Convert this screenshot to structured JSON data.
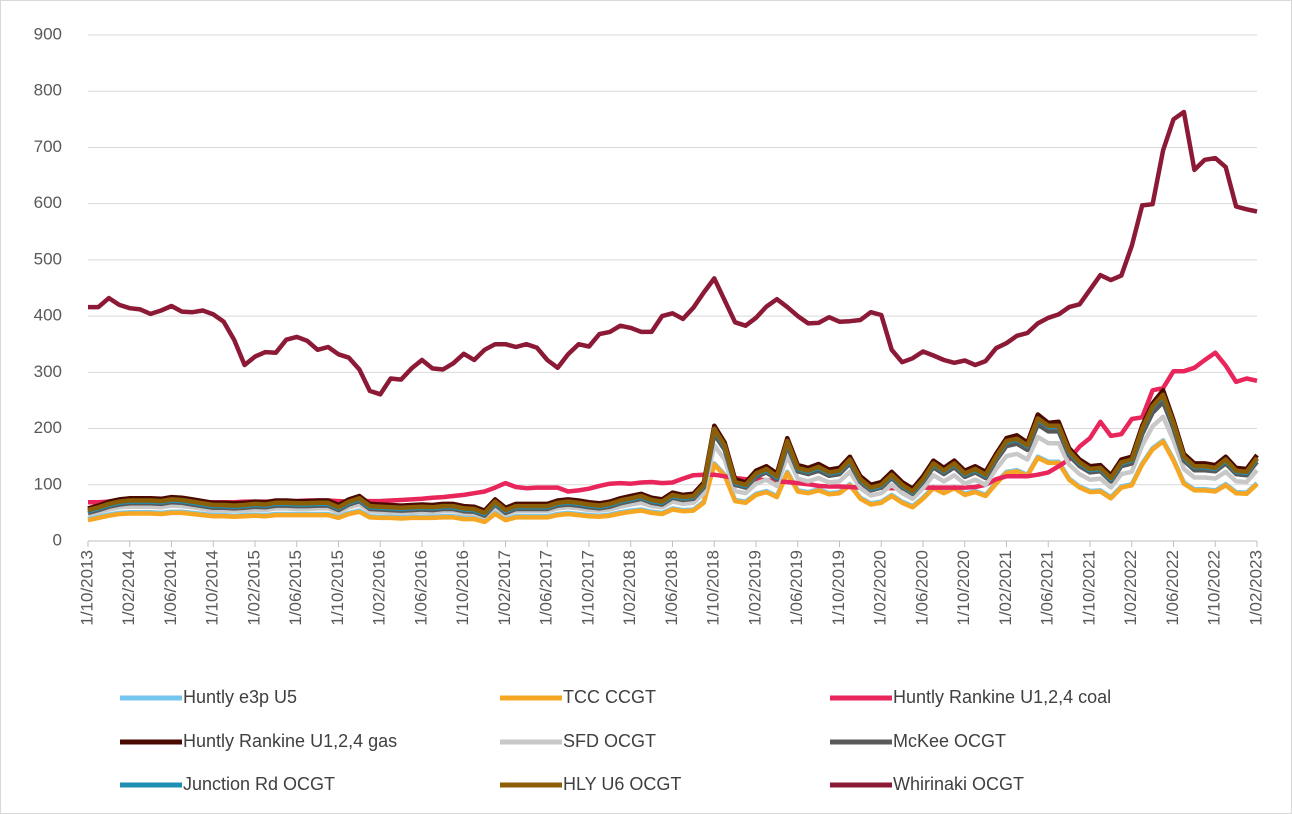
{
  "chart_data": {
    "type": "line",
    "grid": true,
    "legend": "bottom",
    "ylim": [
      0,
      900
    ],
    "yticks": [
      0,
      100,
      200,
      300,
      400,
      500,
      600,
      700,
      800,
      900
    ],
    "categories": [
      "1/10/2013",
      null,
      null,
      null,
      "1/02/2014",
      null,
      null,
      null,
      "1/06/2014",
      null,
      null,
      null,
      "1/10/2014",
      null,
      null,
      null,
      "1/02/2015",
      null,
      null,
      null,
      "1/06/2015",
      null,
      null,
      null,
      "1/10/2015",
      null,
      null,
      null,
      "1/02/2016",
      null,
      null,
      null,
      "1/06/2016",
      null,
      null,
      null,
      "1/10/2016",
      null,
      null,
      null,
      "1/02/2017",
      null,
      null,
      null,
      "1/06/2017",
      null,
      null,
      null,
      "1/10/2017",
      null,
      null,
      null,
      "1/02/2018",
      null,
      null,
      null,
      "1/06/2018",
      null,
      null,
      null,
      "1/10/2018",
      null,
      null,
      null,
      "1/02/2019",
      null,
      null,
      null,
      "1/06/2019",
      null,
      null,
      null,
      "1/10/2019",
      null,
      null,
      null,
      "1/02/2020",
      null,
      null,
      null,
      "1/06/2020",
      null,
      null,
      null,
      "1/10/2020",
      null,
      null,
      null,
      "1/02/2021",
      null,
      null,
      null,
      "1/06/2021",
      null,
      null,
      null,
      "1/10/2021",
      null,
      null,
      null,
      "1/02/2022",
      null,
      null,
      null,
      "1/06/2022",
      null,
      null,
      null,
      "1/10/2022",
      null,
      null,
      null,
      "1/02/2023"
    ],
    "series": [
      {
        "name": "Huntly e3p U5",
        "color": "#75c6ee",
        "values": [
          39,
          43,
          47,
          50,
          51,
          51,
          51,
          50,
          52,
          52,
          50,
          48,
          46,
          46,
          45,
          46,
          47,
          46,
          48,
          48,
          48,
          48,
          48,
          48,
          43,
          50,
          54,
          44,
          43,
          43,
          42,
          43,
          43,
          43,
          44,
          44,
          41,
          41,
          36,
          50,
          39,
          44,
          44,
          44,
          44,
          48,
          50,
          48,
          46,
          45,
          47,
          51,
          54,
          56,
          52,
          50,
          58,
          55,
          56,
          70,
          138,
          118,
          73,
          70,
          84,
          89,
          80,
          123,
          90,
          87,
          92,
          85,
          87,
          101,
          77,
          67,
          70,
          82,
          70,
          62,
          77,
          96,
          87,
          96,
          84,
          89,
          82,
          104,
          123,
          126,
          118,
          150,
          141,
          141,
          111,
          97,
          89,
          90,
          78,
          97,
          101,
          138,
          165,
          179,
          145,
          104,
          92,
          92,
          90,
          101,
          87,
          86,
          103
        ]
      },
      {
        "name": "TCC CCGT",
        "color": "#f5a623",
        "values": [
          37,
          41,
          45,
          48,
          49,
          49,
          49,
          48,
          50,
          50,
          48,
          46,
          44,
          44,
          43,
          44,
          45,
          44,
          46,
          46,
          46,
          46,
          46,
          46,
          41,
          48,
          52,
          42,
          41,
          41,
          40,
          41,
          41,
          41,
          42,
          42,
          39,
          39,
          34,
          48,
          37,
          42,
          42,
          42,
          42,
          46,
          48,
          46,
          44,
          43,
          45,
          49,
          52,
          54,
          50,
          48,
          56,
          53,
          54,
          68,
          136,
          116,
          71,
          68,
          82,
          87,
          78,
          121,
          88,
          85,
          90,
          83,
          85,
          99,
          75,
          65,
          68,
          80,
          68,
          60,
          75,
          94,
          85,
          94,
          82,
          87,
          80,
          102,
          121,
          124,
          116,
          148,
          139,
          139,
          109,
          95,
          87,
          88,
          76,
          95,
          99,
          136,
          163,
          177,
          143,
          102,
          90,
          90,
          88,
          99,
          85,
          84,
          101
        ]
      },
      {
        "name": "Huntly Rankine U1,2,4 coal",
        "color": "#e8265b",
        "values": [
          69,
          69,
          70,
          70,
          70,
          70,
          70,
          70,
          70,
          70,
          69,
          69,
          69,
          69,
          69,
          70,
          70,
          70,
          70,
          70,
          71,
          72,
          72,
          72,
          71,
          70,
          71,
          71,
          71,
          72,
          73,
          74,
          75,
          77,
          78,
          80,
          82,
          85,
          88,
          95,
          103,
          96,
          94,
          95,
          95,
          95,
          88,
          90,
          93,
          98,
          102,
          103,
          102,
          104,
          105,
          103,
          104,
          111,
          117,
          118,
          118,
          115,
          112,
          110,
          110,
          108,
          106,
          105,
          103,
          101,
          98,
          97,
          97,
          96,
          95,
          96,
          95,
          94,
          94,
          95,
          95,
          95,
          95,
          95,
          95,
          96,
          100,
          110,
          115,
          115,
          115,
          118,
          122,
          133,
          145,
          168,
          183,
          212,
          187,
          190,
          217,
          220,
          268,
          272,
          302,
          302,
          308,
          322,
          335,
          312,
          283,
          289,
          285
        ]
      },
      {
        "name": "Huntly Rankine U1,2,4 gas",
        "color": "#4a0a00",
        "values": [
          58,
          63,
          70,
          74,
          76,
          76,
          76,
          75,
          78,
          77,
          74,
          71,
          68,
          68,
          67,
          68,
          70,
          69,
          72,
          72,
          71,
          71,
          72,
          72,
          64,
          74,
          80,
          66,
          65,
          64,
          63,
          64,
          65,
          64,
          66,
          66,
          62,
          61,
          54,
          74,
          59,
          66,
          66,
          66,
          66,
          72,
          74,
          72,
          69,
          67,
          70,
          76,
          80,
          84,
          77,
          74,
          86,
          82,
          84,
          104,
          205,
          175,
          110,
          104,
          125,
          133,
          120,
          183,
          135,
          130,
          137,
          127,
          130,
          150,
          115,
          100,
          105,
          123,
          105,
          93,
          115,
          143,
          130,
          143,
          125,
          133,
          123,
          155,
          183,
          188,
          175,
          225,
          210,
          212,
          165,
          145,
          133,
          135,
          117,
          145,
          150,
          205,
          245,
          268,
          215,
          155,
          138,
          138,
          135,
          150,
          130,
          128,
          153
        ]
      },
      {
        "name": "SFD OCGT",
        "color": "#c8c8c8",
        "values": [
          47,
          51,
          56,
          60,
          61,
          61,
          61,
          60,
          63,
          62,
          60,
          57,
          54,
          54,
          54,
          54,
          56,
          55,
          58,
          58,
          57,
          57,
          58,
          58,
          51,
          60,
          65,
          53,
          52,
          51,
          50,
          51,
          52,
          51,
          53,
          53,
          49,
          48,
          43,
          60,
          47,
          53,
          53,
          53,
          53,
          58,
          60,
          58,
          55,
          54,
          56,
          61,
          65,
          68,
          62,
          60,
          70,
          66,
          68,
          85,
          170,
          145,
          89,
          85,
          102,
          109,
          98,
          151,
          111,
          106,
          112,
          104,
          106,
          123,
          94,
          81,
          85,
          100,
          85,
          75,
          94,
          117,
          106,
          117,
          102,
          109,
          100,
          128,
          151,
          155,
          145,
          185,
          174,
          174,
          136,
          119,
          109,
          111,
          95,
          119,
          123,
          170,
          204,
          221,
          179,
          128,
          113,
          113,
          111,
          123,
          106,
          105,
          126
        ]
      },
      {
        "name": "McKee OCGT",
        "color": "#595959",
        "values": [
          50,
          55,
          61,
          65,
          67,
          67,
          67,
          66,
          69,
          68,
          65,
          62,
          59,
          59,
          58,
          59,
          61,
          60,
          63,
          63,
          62,
          62,
          63,
          63,
          55,
          65,
          71,
          57,
          56,
          55,
          54,
          55,
          56,
          55,
          57,
          57,
          53,
          52,
          45,
          65,
          50,
          57,
          57,
          57,
          57,
          63,
          65,
          63,
          60,
          58,
          61,
          67,
          71,
          75,
          68,
          65,
          77,
          73,
          75,
          95,
          190,
          162,
          100,
          95,
          114,
          122,
          109,
          169,
          124,
          119,
          125,
          116,
          119,
          138,
          105,
          90,
          95,
          112,
          95,
          84,
          105,
          131,
          119,
          131,
          114,
          122,
          112,
          143,
          169,
          173,
          162,
          207,
          195,
          195,
          152,
          133,
          122,
          124,
          106,
          133,
          138,
          190,
          228,
          247,
          200,
          143,
          126,
          126,
          124,
          138,
          119,
          117,
          141
        ]
      },
      {
        "name": "Junction Rd OCGT",
        "color": "#1f8fb3",
        "values": [
          53,
          58,
          64,
          68,
          70,
          70,
          70,
          69,
          72,
          71,
          68,
          65,
          62,
          62,
          61,
          62,
          64,
          63,
          66,
          66,
          65,
          65,
          66,
          66,
          58,
          68,
          74,
          60,
          59,
          58,
          57,
          58,
          59,
          58,
          60,
          60,
          56,
          55,
          48,
          68,
          53,
          60,
          60,
          60,
          60,
          66,
          68,
          66,
          63,
          61,
          64,
          70,
          74,
          78,
          71,
          68,
          80,
          76,
          78,
          98,
          198,
          168,
          103,
          98,
          118,
          126,
          113,
          176,
          128,
          123,
          130,
          120,
          123,
          143,
          108,
          93,
          98,
          116,
          98,
          86,
          108,
          136,
          123,
          136,
          118,
          126,
          116,
          148,
          176,
          180,
          168,
          216,
          203,
          203,
          158,
          138,
          126,
          128,
          110,
          138,
          143,
          198,
          238,
          258,
          208,
          148,
          131,
          131,
          128,
          143,
          123,
          121,
          146
        ]
      },
      {
        "name": "HLY U6 OCGT",
        "color": "#8c5e06",
        "values": [
          55,
          60,
          66,
          70,
          72,
          72,
          72,
          71,
          74,
          73,
          70,
          67,
          64,
          64,
          63,
          64,
          66,
          65,
          68,
          68,
          67,
          67,
          68,
          68,
          60,
          70,
          76,
          62,
          61,
          60,
          59,
          60,
          61,
          60,
          62,
          62,
          58,
          57,
          50,
          70,
          55,
          62,
          62,
          62,
          62,
          68,
          70,
          68,
          65,
          63,
          66,
          72,
          76,
          80,
          73,
          70,
          82,
          78,
          80,
          100,
          200,
          170,
          105,
          100,
          120,
          128,
          115,
          178,
          130,
          125,
          132,
          122,
          125,
          145,
          110,
          95,
          100,
          118,
          100,
          88,
          110,
          138,
          125,
          138,
          120,
          128,
          118,
          150,
          178,
          182,
          170,
          218,
          205,
          205,
          160,
          140,
          128,
          130,
          112,
          140,
          145,
          200,
          240,
          260,
          210,
          150,
          133,
          133,
          130,
          145,
          125,
          123,
          148
        ]
      },
      {
        "name": "Whirinaki OCGT",
        "color": "#8c1a36",
        "values": [
          416,
          416,
          432,
          420,
          414,
          412,
          404,
          410,
          418,
          408,
          407,
          410,
          403,
          390,
          358,
          313,
          328,
          336,
          335,
          358,
          363,
          356,
          340,
          345,
          332,
          326,
          305,
          267,
          261,
          289,
          287,
          307,
          322,
          307,
          305,
          316,
          333,
          322,
          340,
          350,
          350,
          345,
          350,
          344,
          322,
          308,
          332,
          350,
          346,
          368,
          372,
          383,
          379,
          372,
          372,
          400,
          405,
          395,
          415,
          442,
          467,
          428,
          389,
          383,
          397,
          417,
          430,
          416,
          400,
          387,
          388,
          398,
          390,
          391,
          393,
          407,
          402,
          340,
          318,
          325,
          337,
          330,
          322,
          317,
          321,
          313,
          320,
          343,
          352,
          365,
          370,
          387,
          397,
          403,
          416,
          421,
          447,
          473,
          464,
          472,
          525,
          597,
          599,
          695,
          750,
          763,
          660,
          678,
          681,
          665,
          595,
          590,
          586
        ]
      }
    ]
  }
}
